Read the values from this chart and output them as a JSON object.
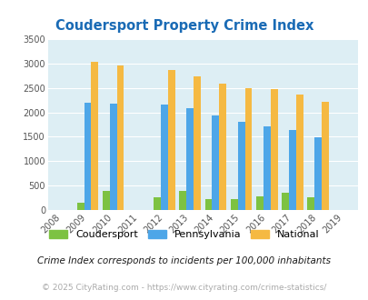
{
  "title": "Coudersport Property Crime Index",
  "years": [
    2008,
    2009,
    2010,
    2011,
    2012,
    2013,
    2014,
    2015,
    2016,
    2017,
    2018,
    2019
  ],
  "coudersport": [
    0,
    150,
    390,
    0,
    255,
    395,
    215,
    215,
    270,
    350,
    265,
    0
  ],
  "pennsylvania": [
    0,
    2200,
    2175,
    0,
    2150,
    2075,
    1940,
    1800,
    1720,
    1630,
    1490,
    0
  ],
  "national": [
    0,
    3040,
    2960,
    0,
    2870,
    2730,
    2590,
    2500,
    2470,
    2370,
    2210,
    0
  ],
  "ylim": [
    0,
    3500
  ],
  "yticks": [
    0,
    500,
    1000,
    1500,
    2000,
    2500,
    3000,
    3500
  ],
  "color_coudersport": "#7dc242",
  "color_pennsylvania": "#4da6e8",
  "color_national": "#f5b942",
  "bg_color": "#ddeef4",
  "title_color": "#1a6bb5",
  "subtitle": "Crime Index corresponds to incidents per 100,000 inhabitants",
  "footer": "© 2025 CityRating.com - https://www.cityrating.com/crime-statistics/",
  "subtitle_color": "#1a1a1a",
  "footer_color": "#aaaaaa"
}
